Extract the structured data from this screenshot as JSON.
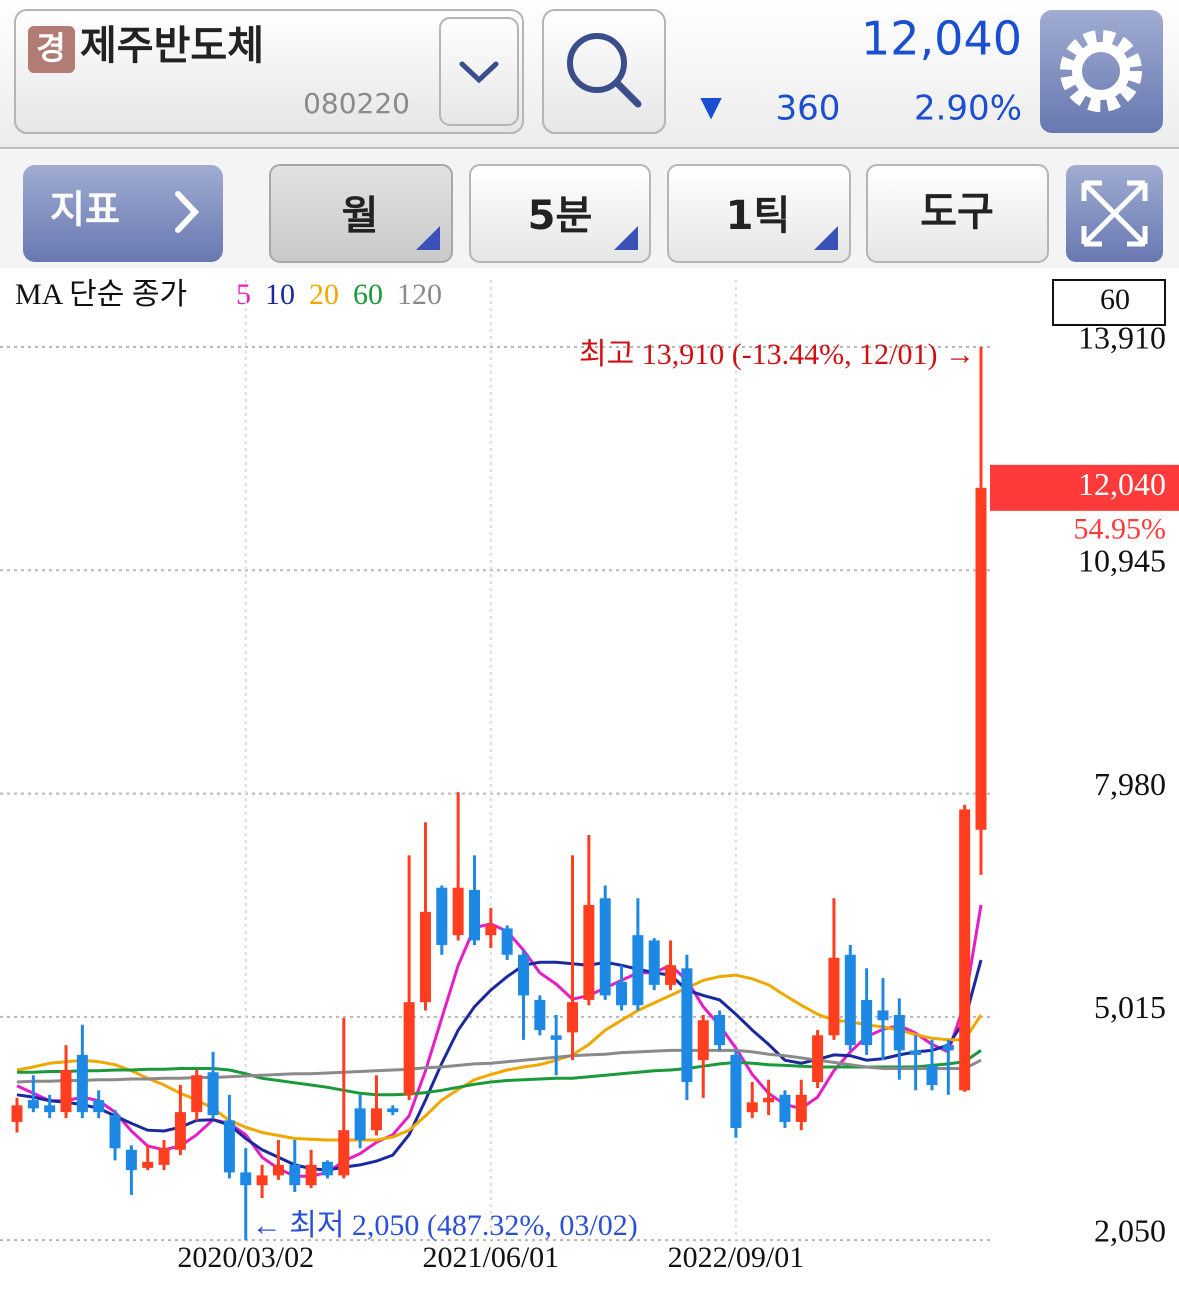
{
  "header": {
    "badge": "경",
    "name": "제주반도체",
    "code": "080220",
    "price": "12,040",
    "change_sign": "▼",
    "change": "360",
    "change_rate": "2.90%"
  },
  "toolbar": {
    "indicator": "지표",
    "period": "월",
    "interval": "5분",
    "tick": "1틱",
    "tools": "도구"
  },
  "chart_data": {
    "type": "candlestick",
    "legend_title": "MA 단순 종가",
    "visible_count": 60,
    "categories": [
      null,
      null,
      null,
      null,
      null,
      null,
      null,
      null,
      null,
      null,
      null,
      null,
      null,
      null,
      "2020/03/02",
      null,
      null,
      null,
      null,
      null,
      null,
      null,
      null,
      null,
      null,
      null,
      null,
      null,
      null,
      "2021/06/01",
      null,
      null,
      null,
      null,
      null,
      null,
      null,
      null,
      null,
      null,
      null,
      null,
      null,
      null,
      "2022/09/01",
      null,
      null,
      null,
      null,
      null,
      null,
      null,
      null,
      null,
      null,
      null,
      null,
      null,
      null,
      null
    ],
    "open": [
      3620,
      3910,
      3840,
      3750,
      4510,
      3910,
      3710,
      3250,
      3010,
      3050,
      3250,
      3750,
      4280,
      3640,
      2950,
      2780,
      2910,
      3050,
      2780,
      3090,
      2910,
      3800,
      3510,
      3800,
      3980,
      5210,
      6730,
      6100,
      6700,
      6100,
      6190,
      5840,
      5240,
      4770,
      4810,
      5240,
      6590,
      5480,
      6100,
      6030,
      5440,
      5660,
      4440,
      5040,
      4510,
      3750,
      3880,
      3980,
      3620,
      4150,
      4770,
      5840,
      5240,
      5100,
      5040,
      4570,
      4370,
      4640,
      4040,
      7500
    ],
    "high": [
      3940,
      4240,
      3980,
      4640,
      4910,
      4040,
      3780,
      3310,
      3310,
      3380,
      4110,
      4310,
      4550,
      3980,
      3270,
      3050,
      3380,
      3380,
      3250,
      3110,
      5000,
      3980,
      4240,
      3840,
      7160,
      7600,
      6760,
      8000,
      7160,
      6460,
      6230,
      5900,
      5300,
      5040,
      7160,
      7430,
      6760,
      5700,
      6590,
      6060,
      6030,
      5840,
      5040,
      5100,
      4570,
      4150,
      4180,
      4040,
      4180,
      4840,
      6590,
      5970,
      5660,
      5530,
      5260,
      4770,
      4710,
      4710,
      7830,
      13910
    ],
    "low": [
      3480,
      3750,
      3670,
      3670,
      3670,
      3670,
      3110,
      2650,
      2980,
      2980,
      3180,
      3640,
      3670,
      2870,
      2050,
      2610,
      2850,
      2690,
      2740,
      2870,
      2870,
      3270,
      3440,
      3710,
      3910,
      5100,
      5840,
      6030,
      5970,
      5930,
      5770,
      4710,
      4770,
      4240,
      4440,
      5170,
      5240,
      5100,
      5100,
      5370,
      5370,
      3910,
      3940,
      4570,
      3410,
      3670,
      3710,
      3540,
      3510,
      4070,
      4710,
      4570,
      4510,
      4440,
      4180,
      4040,
      4040,
      3980,
      4020,
      6900
    ],
    "close": [
      3840,
      3800,
      3750,
      4310,
      3750,
      3750,
      3270,
      2980,
      3090,
      3270,
      3750,
      4240,
      3710,
      2950,
      2780,
      2910,
      3050,
      2780,
      3050,
      2910,
      3510,
      3380,
      3800,
      3750,
      5210,
      6410,
      5970,
      6730,
      6030,
      6230,
      5840,
      5300,
      4840,
      4710,
      5210,
      6500,
      5300,
      5170,
      5170,
      5440,
      5700,
      4150,
      4970,
      4640,
      3540,
      3880,
      3940,
      3620,
      3980,
      4770,
      5800,
      4640,
      4640,
      4970,
      4570,
      4510,
      4110,
      4570,
      7770,
      12040
    ],
    "up_color": "#ff3d1f",
    "down_color": "#1e88e5",
    "ma_series": [
      {
        "name": "5",
        "color": "#e61ec8",
        "values": [
          4100,
          4000,
          3900,
          3900,
          3950,
          3900,
          3750,
          3500,
          3300,
          3250,
          3300,
          3450,
          3650,
          3600,
          3450,
          3150,
          3000,
          2900,
          2900,
          2950,
          3100,
          3200,
          3350,
          3450,
          3700,
          4300,
          5000,
          5700,
          6200,
          6250,
          6150,
          5900,
          5600,
          5450,
          5250,
          5300,
          5400,
          5500,
          5600,
          5600,
          5700,
          5500,
          5150,
          4900,
          4600,
          4250,
          4000,
          3850,
          3800,
          3950,
          4300,
          4550,
          4750,
          4850,
          4900,
          4800,
          4650,
          4550,
          5200,
          6500
        ]
      },
      {
        "name": "10",
        "color": "#1a2a9e",
        "values": [
          3980,
          3950,
          3900,
          3880,
          3850,
          3800,
          3700,
          3600,
          3510,
          3500,
          3550,
          3640,
          3650,
          3580,
          3400,
          3250,
          3150,
          3050,
          3000,
          2980,
          3020,
          3050,
          3100,
          3180,
          3450,
          3910,
          4400,
          4840,
          5150,
          5370,
          5550,
          5700,
          5740,
          5740,
          5720,
          5700,
          5740,
          5700,
          5650,
          5600,
          5570,
          5370,
          5300,
          5240,
          5050,
          4840,
          4650,
          4440,
          4400,
          4450,
          4510,
          4500,
          4440,
          4460,
          4510,
          4550,
          4570,
          4640,
          4970,
          5770
        ]
      },
      {
        "name": "20",
        "color": "#f0a800",
        "values": [
          4310,
          4350,
          4400,
          4420,
          4440,
          4420,
          4380,
          4300,
          4200,
          4110,
          4000,
          3910,
          3800,
          3640,
          3550,
          3480,
          3440,
          3400,
          3390,
          3380,
          3380,
          3380,
          3380,
          3420,
          3510,
          3700,
          3910,
          4050,
          4180,
          4250,
          4310,
          4350,
          4380,
          4440,
          4510,
          4650,
          4840,
          4970,
          5100,
          5200,
          5300,
          5400,
          5500,
          5550,
          5570,
          5520,
          5440,
          5300,
          5170,
          5050,
          4970,
          4950,
          4910,
          4880,
          4840,
          4780,
          4730,
          4710,
          4710,
          5040
        ]
      },
      {
        "name": "60",
        "color": "#1a9a3a",
        "values": [
          4280,
          4280,
          4290,
          4290,
          4300,
          4300,
          4310,
          4310,
          4320,
          4320,
          4330,
          4330,
          4330,
          4310,
          4260,
          4200,
          4170,
          4140,
          4110,
          4080,
          4040,
          4000,
          3980,
          3980,
          3990,
          4010,
          4040,
          4080,
          4120,
          4150,
          4170,
          4180,
          4190,
          4200,
          4200,
          4220,
          4240,
          4260,
          4280,
          4300,
          4310,
          4330,
          4360,
          4390,
          4410,
          4400,
          4380,
          4370,
          4360,
          4350,
          4350,
          4350,
          4350,
          4350,
          4350,
          4350,
          4370,
          4390,
          4420,
          4570
        ]
      },
      {
        "name": "120",
        "color": "#8a8a8a",
        "values": [
          4150,
          4160,
          4160,
          4170,
          4170,
          4180,
          4180,
          4190,
          4190,
          4200,
          4200,
          4210,
          4210,
          4220,
          4230,
          4240,
          4250,
          4260,
          4260,
          4270,
          4280,
          4290,
          4300,
          4310,
          4320,
          4340,
          4350,
          4370,
          4390,
          4400,
          4420,
          4440,
          4460,
          4480,
          4500,
          4510,
          4520,
          4540,
          4550,
          4560,
          4570,
          4570,
          4570,
          4570,
          4570,
          4550,
          4520,
          4500,
          4470,
          4440,
          4410,
          4380,
          4350,
          4330,
          4330,
          4330,
          4330,
          4330,
          4330,
          4440
        ]
      }
    ],
    "ylim": [
      1760,
      14800
    ],
    "yticks": [
      {
        "value": 2050,
        "label": "2,050"
      },
      {
        "value": 5015,
        "label": "5,015"
      },
      {
        "value": 7980,
        "label": "7,980"
      },
      {
        "value": 10945,
        "label": "10,945"
      },
      {
        "value": 13910,
        "label": "13,910"
      }
    ],
    "grid": true,
    "high_annotation": "최고 13,910 (-13.44%, 12/01) →",
    "low_annotation": "← 최저 2,050 (487.32%, 03/02)",
    "last_price": {
      "value": 12040,
      "label": "12,040"
    },
    "last_change": "54.95%"
  }
}
